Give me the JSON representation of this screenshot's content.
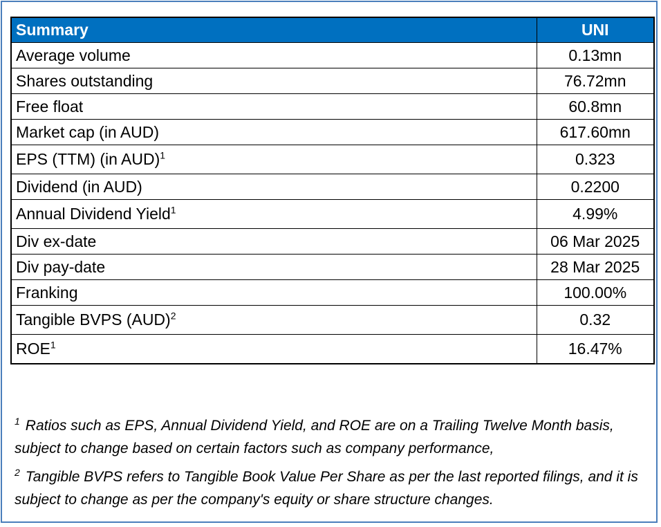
{
  "table": {
    "header": {
      "label": "Summary",
      "value": "UNI"
    },
    "rows": [
      {
        "label": "Average volume",
        "note": "",
        "value": "0.13mn"
      },
      {
        "label": "Shares outstanding",
        "note": "",
        "value": "76.72mn"
      },
      {
        "label": "Free float",
        "note": "",
        "value": "60.8mn"
      },
      {
        "label": "Market cap (in AUD)",
        "note": "",
        "value": "617.60mn"
      },
      {
        "label": "EPS (TTM) (in AUD)",
        "note": "1",
        "value": "0.323"
      },
      {
        "label": "Dividend (in AUD)",
        "note": "",
        "value": "0.2200"
      },
      {
        "label": "Annual Dividend Yield",
        "note": "1",
        "value": "4.99%"
      },
      {
        "label": "Div ex-date",
        "note": "",
        "value": "06 Mar 2025"
      },
      {
        "label": "Div pay-date",
        "note": "",
        "value": "28 Mar 2025"
      },
      {
        "label": "Franking",
        "note": "",
        "value": "100.00%"
      },
      {
        "label": "Tangible BVPS (AUD)",
        "note": "2",
        "value": "0.32"
      },
      {
        "label": "ROE",
        "note": "1",
        "value": "16.47%"
      }
    ]
  },
  "footnotes": [
    {
      "mark": "1",
      "text": "Ratios such as EPS, Annual Dividend Yield, and ROE are on a Trailing Twelve Month basis, subject to change based on certain factors such as company performance,"
    },
    {
      "mark": "2",
      "text": "Tangible BVPS refers to Tangible Book Value Per Share as per the last reported filings, and it is subject to change as per the company's equity or share structure changes."
    }
  ],
  "colors": {
    "header_bg": "#0070c0",
    "header_text": "#ffffff",
    "frame_border": "#4a7ebb"
  }
}
